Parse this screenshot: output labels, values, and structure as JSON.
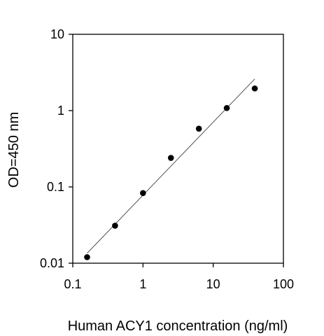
{
  "chart_data": {
    "type": "scatter",
    "xlabel": "Human ACY1 concentration (ng/ml)",
    "ylabel": "OD=450 nm",
    "x_scale": "log",
    "y_scale": "log",
    "xlim": [
      0.1,
      100
    ],
    "ylim": [
      0.01,
      10
    ],
    "x_ticks": [
      0.1,
      1,
      10,
      100
    ],
    "y_ticks": [
      0.01,
      0.1,
      1,
      10
    ],
    "x_tick_labels": [
      "0.1",
      "1",
      "10",
      "100"
    ],
    "y_tick_labels": [
      "0.01",
      "0.1",
      "1",
      "10"
    ],
    "grid": false,
    "legend": "none",
    "series": [
      {
        "x": [
          0.16,
          0.4,
          1.0,
          2.5,
          6.25,
          15.6,
          39.1
        ],
        "y": [
          0.012,
          0.031,
          0.083,
          0.24,
          0.58,
          1.08,
          1.95
        ]
      }
    ],
    "fit_line": {
      "x": [
        0.16,
        39.1
      ],
      "y": [
        0.0135,
        2.6
      ]
    },
    "colors": {
      "points": "#000000",
      "fit": "#444444",
      "axes": "#000000"
    }
  }
}
